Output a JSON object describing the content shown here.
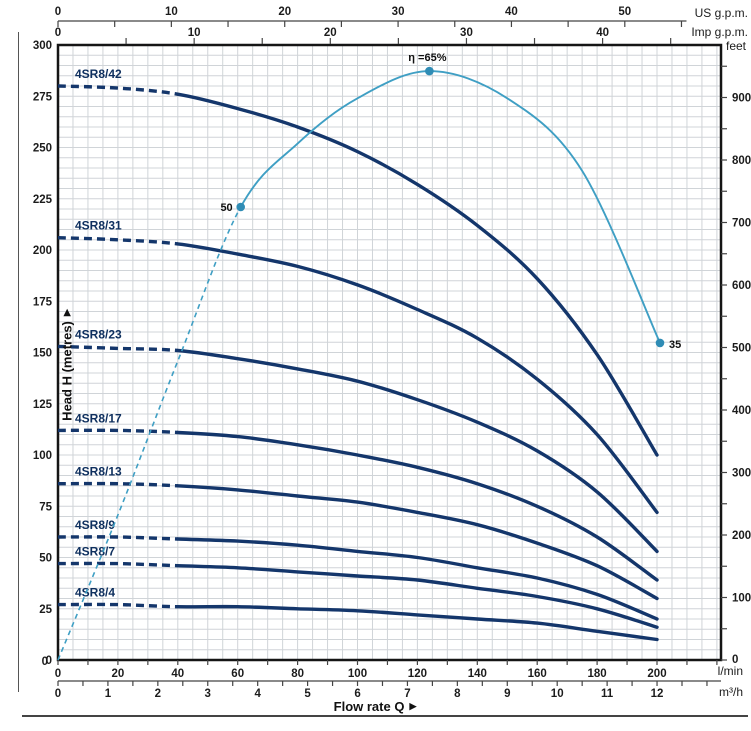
{
  "labels": {
    "flow_rate": "Flow rate Q",
    "head": "Head H (metres)",
    "us_gpm": "US g.p.m.",
    "imp_gpm": "Imp g.p.m.",
    "feet": "feet",
    "l_min": "l/min",
    "m3_h": "m³/h"
  },
  "icons": {
    "right_arrow": "▶"
  },
  "chart_data": {
    "type": "line",
    "title": "",
    "xlabel": "Flow rate Q",
    "ylabel": "Head H (metres)",
    "x_axes": {
      "l_min": {
        "ticks": [
          0,
          20,
          40,
          60,
          80,
          100,
          120,
          140,
          160,
          180,
          200
        ],
        "minor_step": 10,
        "minor_max": 220,
        "range": [
          0,
          221
        ]
      },
      "m3_h": {
        "ticks": [
          0,
          1,
          2,
          3,
          4,
          5,
          6,
          7,
          8,
          9,
          10,
          11,
          12
        ],
        "minor_step": 0.5,
        "minor_max": 13
      },
      "us_gpm": {
        "ticks": [
          0,
          10,
          20,
          30,
          40,
          50
        ],
        "minor_step": 5,
        "minor_max": 55
      },
      "imp_gpm": {
        "ticks": [
          0,
          10,
          20,
          30,
          40
        ],
        "minor_step": 5,
        "minor_max": 45
      }
    },
    "y_axes": {
      "metres": {
        "ticks": [
          0,
          25,
          50,
          75,
          100,
          125,
          150,
          175,
          200,
          225,
          250,
          275,
          300
        ],
        "range": [
          0,
          300
        ]
      },
      "feet": {
        "ticks": [
          0,
          100,
          200,
          300,
          400,
          500,
          600,
          700,
          800,
          900
        ],
        "minor_step": 50,
        "minor_max": 950
      }
    },
    "grid": {
      "on": true,
      "step_l_min": 5,
      "step_m": 5
    },
    "categories_l_min": [
      0,
      20,
      40,
      60,
      80,
      100,
      120,
      140,
      160,
      180,
      200
    ],
    "dashed_until_l_min": 40,
    "series": [
      {
        "name": "4SR8/42",
        "head_m": [
          280,
          279,
          276,
          269,
          260,
          248,
          232,
          212,
          186,
          149,
          100
        ]
      },
      {
        "name": "4SR8/31",
        "head_m": [
          206,
          205,
          203,
          198,
          192,
          183,
          171,
          157,
          137,
          110,
          72
        ]
      },
      {
        "name": "4SR8/23",
        "head_m": [
          153,
          152,
          151,
          147,
          142,
          136,
          127,
          116,
          102,
          82,
          53
        ]
      },
      {
        "name": "4SR8/17",
        "head_m": [
          112,
          112,
          111,
          109,
          105,
          100,
          94,
          86,
          75,
          60,
          39
        ]
      },
      {
        "name": "4SR8/13",
        "head_m": [
          86,
          86,
          85,
          83,
          80,
          77,
          72,
          66,
          57,
          46,
          30
        ]
      },
      {
        "name": "4SR8/9",
        "head_m": [
          60,
          60,
          59,
          58,
          56,
          53,
          50,
          45,
          40,
          32,
          20
        ]
      },
      {
        "name": "4SR8/7",
        "head_m": [
          47,
          47,
          46,
          45,
          43,
          41,
          39,
          35,
          31,
          25,
          16
        ]
      },
      {
        "name": "4SR8/4",
        "head_m": [
          27,
          27,
          26,
          26,
          25,
          24,
          22,
          20,
          18,
          14,
          10
        ]
      }
    ],
    "efficiency_curve": {
      "q_l_min": [
        0,
        20,
        40,
        61,
        80,
        100,
        124,
        150,
        175,
        201
      ],
      "eta_percent": [
        0,
        16,
        33,
        50,
        57,
        62,
        65,
        62,
        54,
        35
      ],
      "solid_from_q": 61,
      "markers": [
        {
          "q": 61,
          "eta": 50,
          "label": "50",
          "label_side": "left"
        },
        {
          "q": 124,
          "eta": 65,
          "label": "η =65%",
          "label_side": "top"
        },
        {
          "q": 201,
          "eta": 35,
          "label": "35",
          "label_side": "right"
        }
      ]
    },
    "styles": {
      "curve_color": "#14366b",
      "curve_label_color": "#0e2f5e",
      "efficiency_color": "#3f9fc4",
      "marker_color": "#2f8cb5",
      "grid_color": "#d0d4d8",
      "border_color": "#151515",
      "axis_color": "#444444",
      "text_color": "#1c1c1c"
    }
  }
}
